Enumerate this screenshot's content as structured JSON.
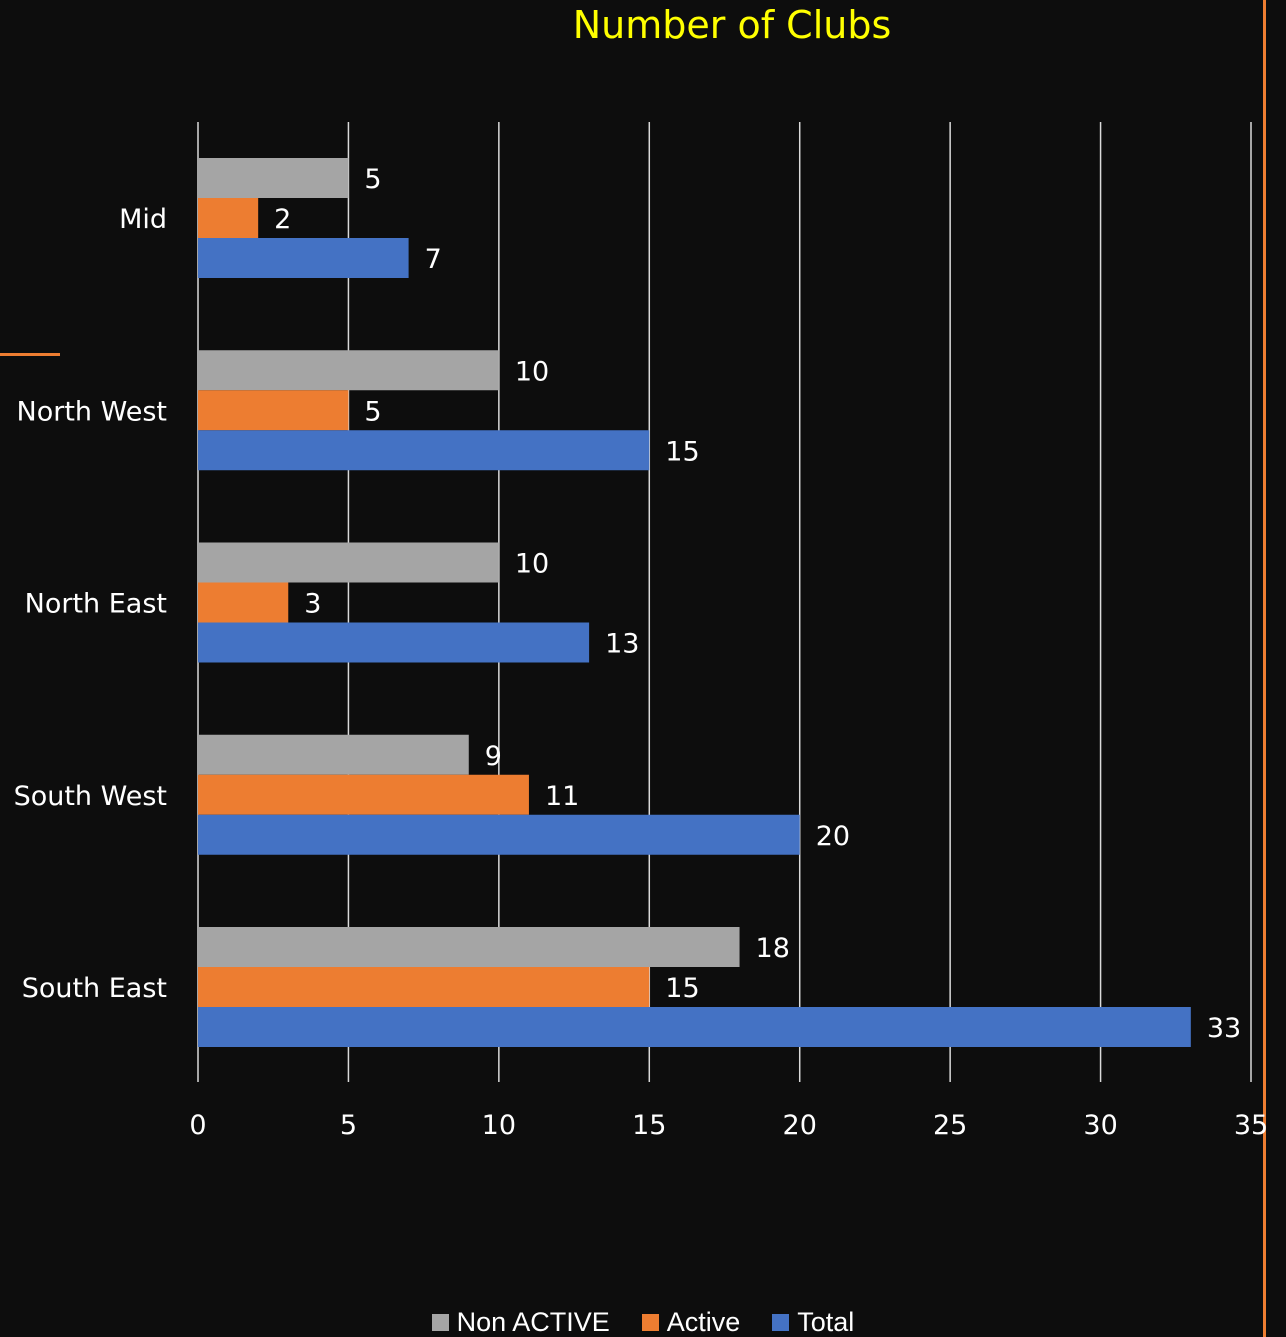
{
  "chart_data": {
    "type": "bar",
    "orientation": "horizontal",
    "title": "Number of Clubs",
    "categories": [
      "Mid",
      "North West",
      "North East",
      "South West",
      "South East"
    ],
    "series": [
      {
        "name": "Non ACTIVE",
        "values": [
          5,
          10,
          10,
          9,
          18
        ],
        "color": "#a5a5a5"
      },
      {
        "name": "Active",
        "values": [
          2,
          5,
          3,
          11,
          15
        ],
        "color": "#ed7d31"
      },
      {
        "name": "Total",
        "values": [
          7,
          15,
          13,
          20,
          33
        ],
        "color": "#4472c4"
      }
    ],
    "xlim": [
      0,
      35
    ],
    "xticks": [
      0,
      5,
      10,
      15,
      20,
      25,
      30,
      35
    ],
    "grid": true,
    "data_labels": true,
    "legend_position": "bottom"
  },
  "colors": {
    "background": "#0d0d0d",
    "title": "#ffff00",
    "text": "#ffffff",
    "gridline": "#d9d9d9",
    "accent_line": "#ed7d31"
  }
}
